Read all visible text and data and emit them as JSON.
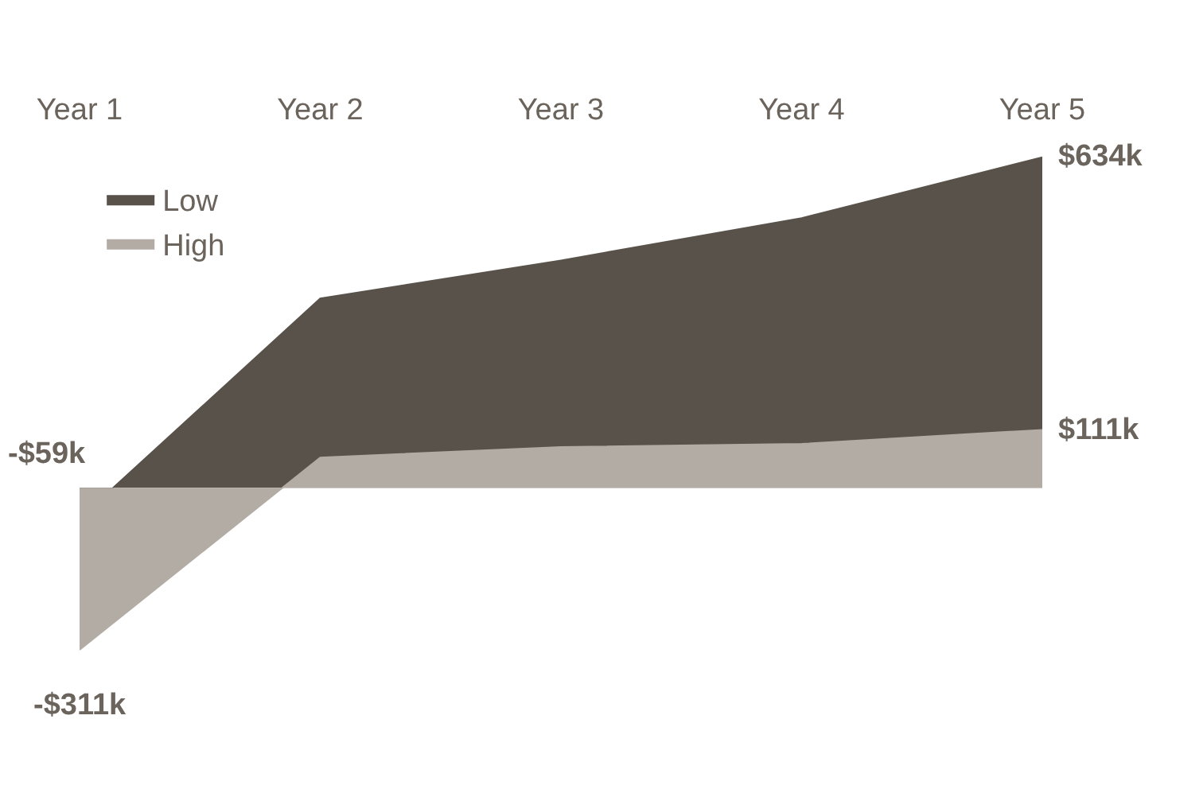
{
  "chart_data": {
    "type": "area",
    "categories": [
      "Year 1",
      "Year 2",
      "Year 3",
      "Year 4",
      "Year 5"
    ],
    "series": [
      {
        "name": "Low",
        "color": "#58524b",
        "values": [
          -59,
          363,
          436,
          517,
          634
        ],
        "value_labels": [
          "-$59k",
          null,
          null,
          null,
          "$634k"
        ]
      },
      {
        "name": "High",
        "color": "#b3aca5",
        "values": [
          -311,
          58,
          78,
          84,
          111
        ],
        "value_labels": [
          "-$311k",
          null,
          null,
          null,
          "$111k"
        ]
      }
    ],
    "tick_labels": "x",
    "legend": "top left"
  }
}
